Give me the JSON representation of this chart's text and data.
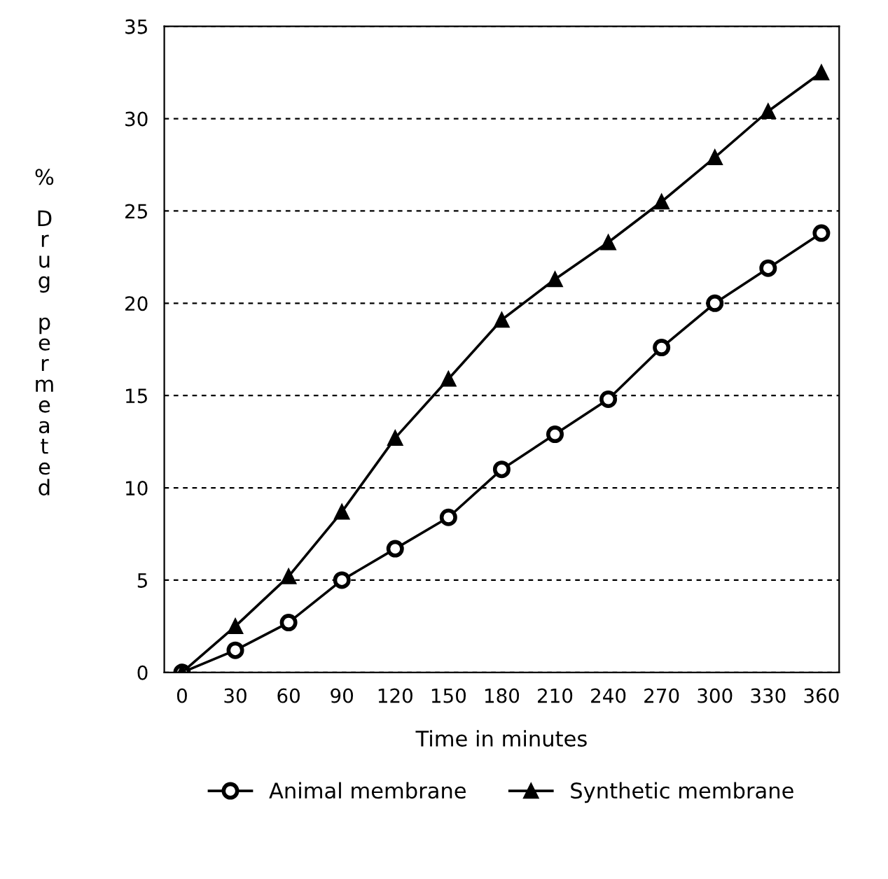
{
  "chart_data": {
    "type": "line",
    "xlabel": "Time in minutes",
    "ylabel": "% Drug permeated",
    "x": [
      0,
      30,
      60,
      90,
      120,
      150,
      180,
      210,
      240,
      270,
      300,
      330,
      360
    ],
    "series": [
      {
        "name": "Animal membrane",
        "color": "#000000",
        "marker": "circle",
        "values": [
          0,
          1.2,
          2.7,
          5,
          6.7,
          8.4,
          11,
          12.9,
          14.8,
          17.6,
          20,
          21.9,
          23.8
        ]
      },
      {
        "name": "Synthetic membrane",
        "color": "#000000",
        "marker": "triangle",
        "values": [
          0,
          2.5,
          5.2,
          8.7,
          12.7,
          15.9,
          19.1,
          21.3,
          23.3,
          25.5,
          27.9,
          30.4,
          32.5
        ]
      }
    ],
    "xlim": [
      -10,
      370
    ],
    "xticks": [
      0,
      30,
      60,
      90,
      120,
      150,
      180,
      210,
      240,
      270,
      300,
      330,
      360
    ],
    "ylim": [
      0,
      35
    ],
    "yticks": [
      0,
      5,
      10,
      15,
      20,
      25,
      30,
      35
    ],
    "grid": "y",
    "legend": "bottom",
    "line_style": "solid"
  }
}
